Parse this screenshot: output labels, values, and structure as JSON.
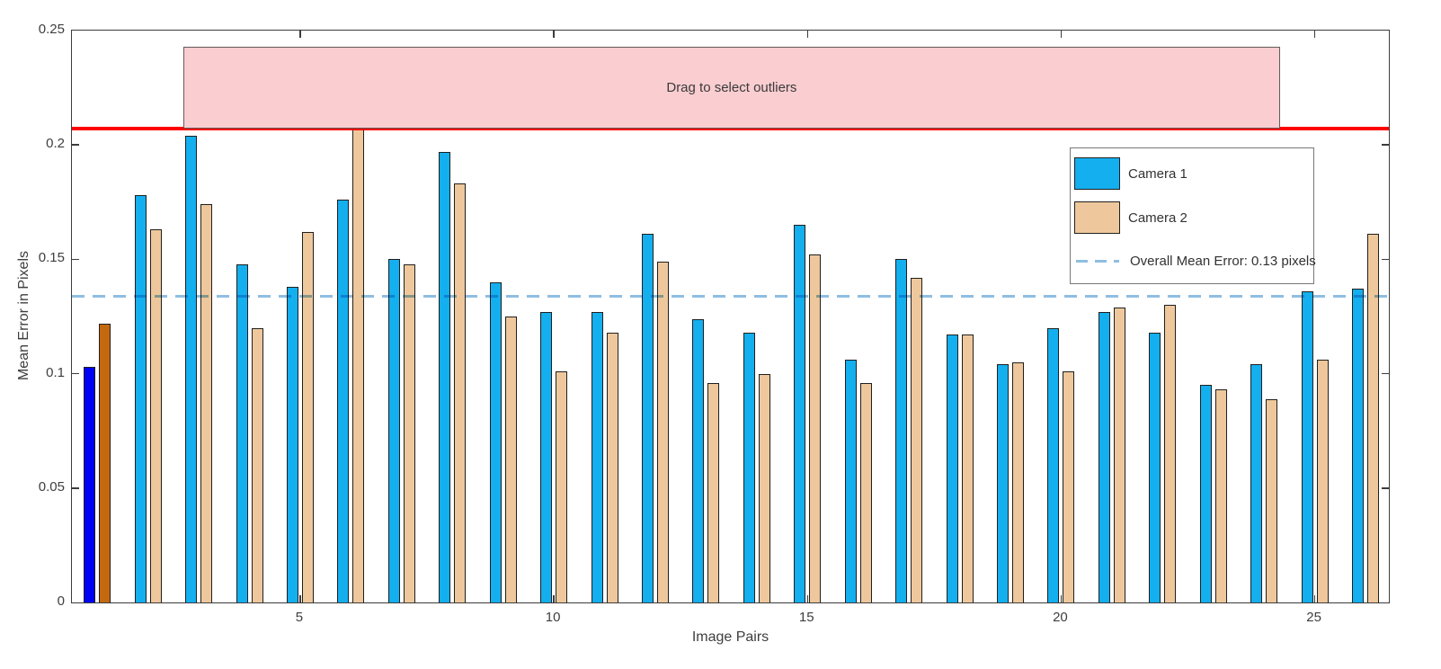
{
  "chart_data": {
    "type": "bar",
    "title": "",
    "xlabel": "Image Pairs",
    "ylabel": "Mean Error in Pixels",
    "xlim": [
      0.5,
      26.46
    ],
    "ylim": [
      0,
      0.25
    ],
    "x_ticks": [
      5,
      10,
      15,
      20,
      25
    ],
    "x_tick_labels": [
      "5",
      "10",
      "15",
      "20",
      "25"
    ],
    "y_ticks": [
      0,
      0.05,
      0.1,
      0.15,
      0.2,
      0.25
    ],
    "y_tick_labels": [
      "0",
      "0.05",
      "0.1",
      "0.15",
      "0.2",
      "0.25"
    ],
    "grid": false,
    "legend_position": "upper right",
    "categories": [
      1,
      2,
      3,
      4,
      5,
      6,
      7,
      8,
      9,
      10,
      11,
      12,
      13,
      14,
      15,
      16,
      17,
      18,
      19,
      20,
      21,
      22,
      23,
      24,
      25,
      26
    ],
    "series": [
      {
        "name": "Camera 1",
        "color": "#14afee",
        "values": [
          0.103,
          0.178,
          0.204,
          0.148,
          0.138,
          0.176,
          0.15,
          0.197,
          0.14,
          0.127,
          0.127,
          0.161,
          0.124,
          0.118,
          0.165,
          0.106,
          0.15,
          0.117,
          0.104,
          0.12,
          0.127,
          0.118,
          0.095,
          0.104,
          0.136,
          0.137
        ]
      },
      {
        "name": "Camera 2",
        "color": "#eec89c",
        "values": [
          0.122,
          0.163,
          0.174,
          0.12,
          0.162,
          0.207,
          0.148,
          0.183,
          0.125,
          0.101,
          0.118,
          0.149,
          0.096,
          0.1,
          0.152,
          0.096,
          0.142,
          0.117,
          0.105,
          0.101,
          0.129,
          0.13,
          0.093,
          0.089,
          0.106,
          0.161
        ]
      }
    ],
    "highlighted_pair": {
      "index": 1,
      "camera1_color": "#0202f2",
      "camera2_color": "#c4690f"
    },
    "overall_mean_error": {
      "label": "Overall Mean Error: 0.13 pixels",
      "value": 0.134,
      "color": "#8fbee1",
      "style": "dashed"
    },
    "outlier_threshold": {
      "value": 0.207,
      "color": "#ff0000"
    },
    "outlier_region": {
      "label": "Drag to select outliers",
      "x_range": [
        2.69,
        24.32
      ],
      "y_range": [
        0.207,
        0.243
      ],
      "fill": "#facdd1"
    }
  }
}
